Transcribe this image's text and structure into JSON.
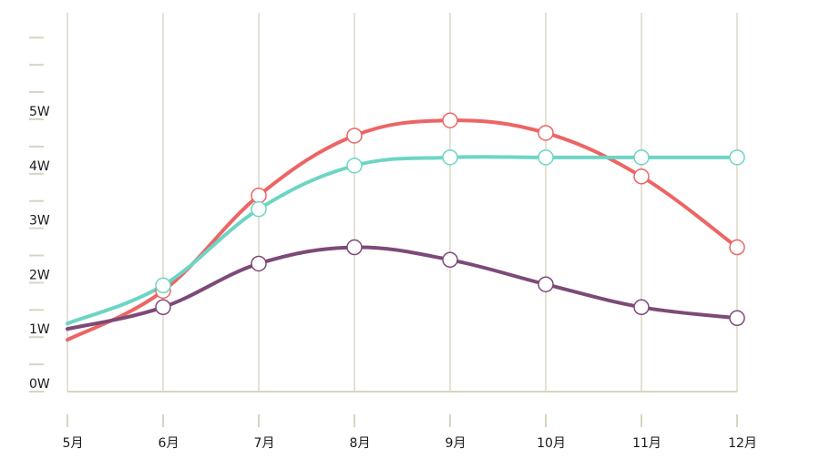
{
  "chart_data": {
    "type": "line",
    "categories": [
      "5月",
      "6月",
      "7月",
      "8月",
      "9月",
      "10月",
      "11月",
      "12月"
    ],
    "y_ticks": [
      {
        "value": 0,
        "label": "0W"
      },
      {
        "value": 1,
        "label": "1W"
      },
      {
        "value": 2,
        "label": "2W"
      },
      {
        "value": 3,
        "label": "3W"
      },
      {
        "value": 4,
        "label": "4W"
      },
      {
        "value": 5,
        "label": "5W"
      }
    ],
    "ylim": [
      0,
      7
    ],
    "smooth": true,
    "grid": {
      "vertical": true,
      "horizontal": false
    },
    "series": [
      {
        "color": "#ec6564",
        "values": [
          0.95,
          1.85,
          3.6,
          4.7,
          4.98,
          4.75,
          3.95,
          2.65
        ],
        "marker_categories": [
          1,
          2,
          3,
          4,
          5,
          6,
          7
        ]
      },
      {
        "color": "#6dd5c4",
        "values": [
          1.25,
          1.95,
          3.35,
          4.15,
          4.3,
          4.3,
          4.3,
          4.3
        ],
        "marker_categories": [
          1,
          2,
          3,
          4,
          5,
          6,
          7
        ]
      },
      {
        "color": "#7c4a78",
        "values": [
          1.15,
          1.55,
          2.35,
          2.65,
          2.42,
          1.97,
          1.55,
          1.35
        ],
        "marker_categories": [
          1,
          2,
          3,
          4,
          5,
          6,
          7
        ]
      }
    ],
    "axis_color": "#d9d4bf",
    "grid_color": "#e5e2d3"
  }
}
